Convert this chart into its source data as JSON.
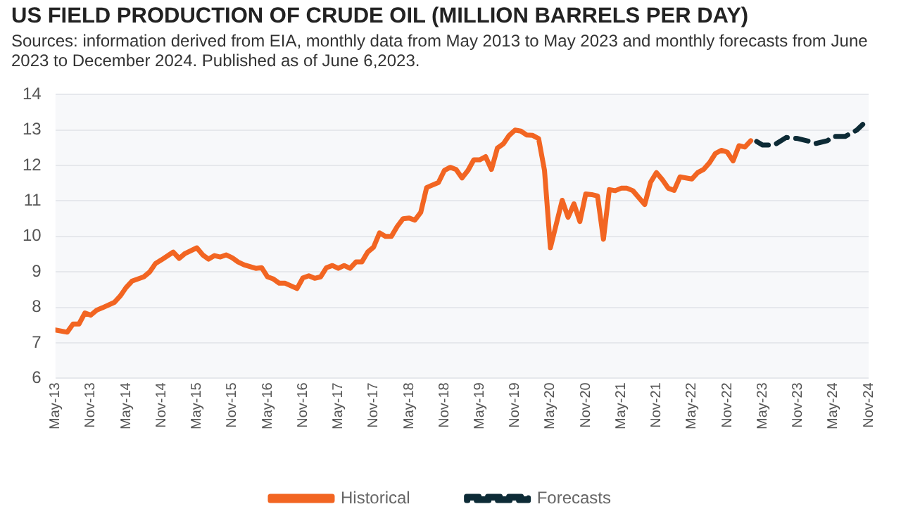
{
  "chart_data": {
    "type": "line",
    "title": "US FIELD PRODUCTION OF CRUDE OIL (MILLION BARRELS PER DAY)",
    "annotations": [
      "Sources: information derived from EIA, monthly data from May 2013 to May 2023 and monthly forecasts from June 2023 to December 2024. Published as of June 6,2023."
    ],
    "series": [
      {
        "name": "Historical",
        "color": "#f26522",
        "line_style": "solid",
        "x": [
          "2013-05",
          "2013-07",
          "2013-08",
          "2013-09",
          "2013-10",
          "2013-11",
          "2013-12",
          "2014-01",
          "2014-03",
          "2014-04",
          "2014-05",
          "2014-06",
          "2014-08",
          "2014-09",
          "2014-10",
          "2014-11",
          "2015-01",
          "2015-02",
          "2015-03",
          "2015-05",
          "2015-06",
          "2015-07",
          "2015-08",
          "2015-09",
          "2015-10",
          "2015-11",
          "2015-12",
          "2016-01",
          "2016-03",
          "2016-04",
          "2016-05",
          "2016-06",
          "2016-07",
          "2016-08",
          "2016-10",
          "2016-11",
          "2016-12",
          "2017-01",
          "2017-02",
          "2017-03",
          "2017-04",
          "2017-05",
          "2017-06",
          "2017-07",
          "2017-08",
          "2017-09",
          "2017-10",
          "2017-11",
          "2017-12",
          "2018-01",
          "2018-02",
          "2018-03",
          "2018-04",
          "2018-05",
          "2018-06",
          "2018-07",
          "2018-08",
          "2018-10",
          "2018-11",
          "2018-12",
          "2019-01",
          "2019-02",
          "2019-03",
          "2019-04",
          "2019-05",
          "2019-06",
          "2019-07",
          "2019-08",
          "2019-09",
          "2019-10",
          "2019-11",
          "2019-12",
          "2020-01",
          "2020-02",
          "2020-03",
          "2020-04",
          "2020-05",
          "2020-07",
          "2020-08",
          "2020-09",
          "2020-10",
          "2020-11",
          "2020-12",
          "2021-01",
          "2021-02",
          "2021-03",
          "2021-04",
          "2021-05",
          "2021-06",
          "2021-07",
          "2021-09",
          "2021-10",
          "2021-11",
          "2021-12",
          "2022-01",
          "2022-02",
          "2022-03",
          "2022-04",
          "2022-05",
          "2022-06",
          "2022-07",
          "2022-08",
          "2022-09",
          "2022-10",
          "2022-11",
          "2022-12",
          "2023-01",
          "2023-02",
          "2023-03"
        ],
        "values": [
          7.36,
          7.3,
          7.53,
          7.53,
          7.84,
          7.78,
          7.92,
          7.99,
          8.14,
          8.32,
          8.56,
          8.74,
          8.86,
          9.0,
          9.24,
          9.34,
          9.56,
          9.38,
          9.52,
          9.68,
          9.48,
          9.36,
          9.46,
          9.42,
          9.48,
          9.4,
          9.28,
          9.2,
          9.1,
          9.12,
          8.86,
          8.8,
          8.68,
          8.68,
          8.53,
          8.83,
          8.89,
          8.82,
          8.86,
          9.12,
          9.18,
          9.1,
          9.18,
          9.1,
          9.28,
          9.28,
          9.56,
          9.7,
          10.1,
          10.0,
          10.0,
          10.28,
          10.5,
          10.52,
          10.46,
          10.68,
          11.38,
          11.52,
          11.86,
          11.95,
          11.89,
          11.65,
          11.86,
          12.16,
          12.16,
          12.25,
          11.89,
          12.49,
          12.61,
          12.85,
          13.0,
          12.97,
          12.86,
          12.85,
          12.76,
          11.86,
          9.68,
          11.02,
          10.54,
          10.92,
          10.42,
          11.2,
          11.18,
          11.14,
          9.92,
          11.32,
          11.29,
          11.36,
          11.36,
          11.29,
          10.9,
          11.53,
          11.8,
          11.6,
          11.36,
          11.3,
          11.68,
          11.65,
          11.62,
          11.8,
          11.89,
          12.08,
          12.34,
          12.43,
          12.38,
          12.13,
          12.56,
          12.52,
          12.7
        ]
      },
      {
        "name": "Forecasts",
        "color": "#0d2b36",
        "line_style": "dashed",
        "x": [
          "2023-04",
          "2023-05",
          "2023-07",
          "2023-09",
          "2023-11",
          "2024-01",
          "2024-02",
          "2024-04",
          "2024-05",
          "2024-07",
          "2024-09",
          "2024-10"
        ],
        "values": [
          12.68,
          12.58,
          12.58,
          12.79,
          12.76,
          12.68,
          12.62,
          12.7,
          12.82,
          12.82,
          13.0,
          13.16
        ]
      }
    ],
    "xlim": [
      "2013-05",
      "2024-11"
    ],
    "xticks": [
      {
        "value": "2013-05",
        "label": "May-13"
      },
      {
        "value": "2013-11",
        "label": "Nov-13"
      },
      {
        "value": "2014-05",
        "label": "May-14"
      },
      {
        "value": "2014-11",
        "label": "Nov-14"
      },
      {
        "value": "2015-05",
        "label": "May-15"
      },
      {
        "value": "2015-11",
        "label": "Nov-15"
      },
      {
        "value": "2016-05",
        "label": "May-16"
      },
      {
        "value": "2016-11",
        "label": "Nov-16"
      },
      {
        "value": "2017-05",
        "label": "May-17"
      },
      {
        "value": "2017-11",
        "label": "Nov-17"
      },
      {
        "value": "2018-05",
        "label": "May-18"
      },
      {
        "value": "2018-11",
        "label": "Nov-18"
      },
      {
        "value": "2019-05",
        "label": "May-19"
      },
      {
        "value": "2019-11",
        "label": "Nov-19"
      },
      {
        "value": "2020-05",
        "label": "May-20"
      },
      {
        "value": "2020-11",
        "label": "Nov-20"
      },
      {
        "value": "2021-05",
        "label": "May-21"
      },
      {
        "value": "2021-11",
        "label": "Nov-21"
      },
      {
        "value": "2022-05",
        "label": "May-22"
      },
      {
        "value": "2022-11",
        "label": "Nov-22"
      },
      {
        "value": "2023-05",
        "label": "May-23"
      },
      {
        "value": "2023-11",
        "label": "Nov-23"
      },
      {
        "value": "2024-05",
        "label": "May-24"
      },
      {
        "value": "2024-11",
        "label": "Nov-24"
      }
    ],
    "ylim": [
      6,
      14
    ],
    "yticks": [
      6,
      7,
      8,
      9,
      10,
      11,
      12,
      13,
      14
    ],
    "grid": "y",
    "legend": "bottom",
    "marker": "none"
  }
}
